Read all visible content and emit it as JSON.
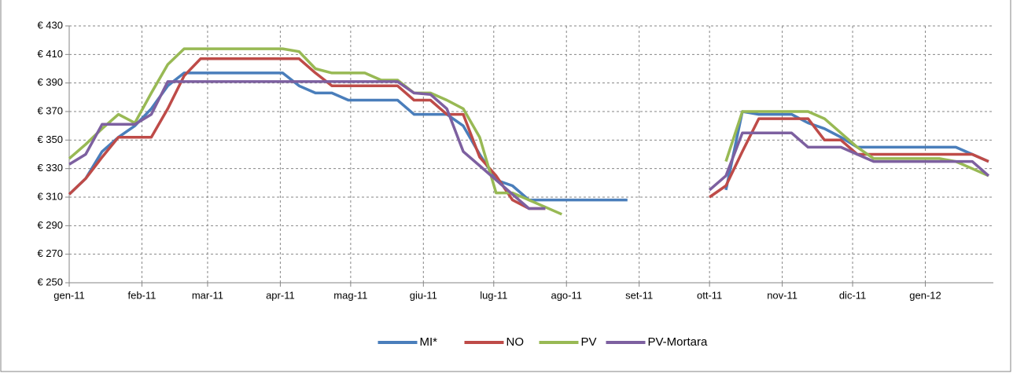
{
  "chart_data": {
    "type": "line",
    "x": [
      0,
      7,
      14,
      21,
      28,
      35,
      42,
      49,
      56,
      63,
      70,
      77,
      84,
      91,
      98,
      105,
      112,
      119,
      126,
      133,
      140,
      147,
      154,
      161,
      168,
      175,
      182,
      189,
      196,
      203,
      210,
      217,
      224,
      231,
      238,
      245,
      252,
      259,
      266,
      273,
      280,
      287,
      294,
      301,
      308,
      315,
      322,
      329,
      336,
      343,
      350,
      357,
      364,
      371,
      378,
      385,
      392
    ],
    "xlim": [
      0,
      394
    ],
    "xticks": [
      {
        "value": 0,
        "label": "gen-11"
      },
      {
        "value": 31,
        "label": "feb-11"
      },
      {
        "value": 59,
        "label": "mar-11"
      },
      {
        "value": 90,
        "label": "apr-11"
      },
      {
        "value": 120,
        "label": "mag-11"
      },
      {
        "value": 151,
        "label": "giu-11"
      },
      {
        "value": 181,
        "label": "lug-11"
      },
      {
        "value": 212,
        "label": "ago-11"
      },
      {
        "value": 243,
        "label": "set-11"
      },
      {
        "value": 273,
        "label": "ott-11"
      },
      {
        "value": 304,
        "label": "nov-11"
      },
      {
        "value": 334,
        "label": "dic-11"
      },
      {
        "value": 365,
        "label": "gen-12"
      }
    ],
    "ylim": [
      250,
      430
    ],
    "yticks": [
      {
        "value": 250,
        "label": "€ 250"
      },
      {
        "value": 270,
        "label": "€ 270"
      },
      {
        "value": 290,
        "label": "€ 290"
      },
      {
        "value": 310,
        "label": "€ 310"
      },
      {
        "value": 330,
        "label": "€ 330"
      },
      {
        "value": 350,
        "label": "€ 350"
      },
      {
        "value": 370,
        "label": "€ 370"
      },
      {
        "value": 390,
        "label": "€ 390"
      },
      {
        "value": 410,
        "label": "€ 410"
      },
      {
        "value": 430,
        "label": "€ 430"
      }
    ],
    "grid": true,
    "legend": "bottom",
    "series": [
      {
        "name": "MI*",
        "color": "#4a7ebb",
        "values": [
          312,
          323,
          342,
          352,
          360,
          372,
          388,
          397,
          397,
          397,
          397,
          397,
          397,
          397,
          388,
          383,
          383,
          378,
          378,
          378,
          378,
          368,
          368,
          368,
          360,
          340,
          322,
          318,
          308,
          308,
          308,
          308,
          308,
          308,
          308,
          null,
          null,
          null,
          null,
          null,
          315,
          370,
          368,
          368,
          368,
          362,
          358,
          352,
          345,
          345,
          345,
          345,
          345,
          345,
          345,
          340,
          335
        ]
      },
      {
        "name": "NO",
        "color": "#be4b48",
        "values": [
          312,
          323,
          338,
          352,
          352,
          352,
          372,
          395,
          407,
          407,
          407,
          407,
          407,
          407,
          407,
          397,
          388,
          388,
          388,
          388,
          388,
          378,
          378,
          368,
          368,
          338,
          325,
          308,
          302,
          302,
          null,
          null,
          null,
          null,
          null,
          null,
          null,
          null,
          null,
          310,
          318,
          342,
          365,
          365,
          365,
          365,
          350,
          350,
          340,
          340,
          340,
          340,
          340,
          340,
          340,
          340,
          335
        ]
      },
      {
        "name": "PV",
        "color": "#98b954",
        "values": [
          337,
          347,
          358,
          368,
          362,
          383,
          403,
          414,
          414,
          414,
          414,
          414,
          414,
          414,
          412,
          400,
          397,
          397,
          397,
          392,
          392,
          383,
          383,
          378,
          372,
          352,
          313,
          313,
          308,
          303,
          298,
          null,
          null,
          null,
          null,
          null,
          null,
          null,
          null,
          null,
          335,
          370,
          370,
          370,
          370,
          370,
          365,
          355,
          345,
          337,
          337,
          337,
          337,
          337,
          335,
          330,
          325
        ]
      },
      {
        "name": "PV-Mortara",
        "color": "#7d60a0",
        "values": [
          333,
          340,
          361,
          361,
          361,
          368,
          391,
          391,
          391,
          391,
          391,
          391,
          391,
          391,
          391,
          391,
          391,
          391,
          391,
          391,
          391,
          383,
          382,
          372,
          342,
          332,
          322,
          312,
          302,
          302,
          null,
          null,
          null,
          null,
          null,
          null,
          null,
          null,
          null,
          315,
          325,
          355,
          355,
          355,
          355,
          345,
          345,
          345,
          340,
          335,
          335,
          335,
          335,
          335,
          335,
          335,
          325
        ]
      }
    ]
  }
}
